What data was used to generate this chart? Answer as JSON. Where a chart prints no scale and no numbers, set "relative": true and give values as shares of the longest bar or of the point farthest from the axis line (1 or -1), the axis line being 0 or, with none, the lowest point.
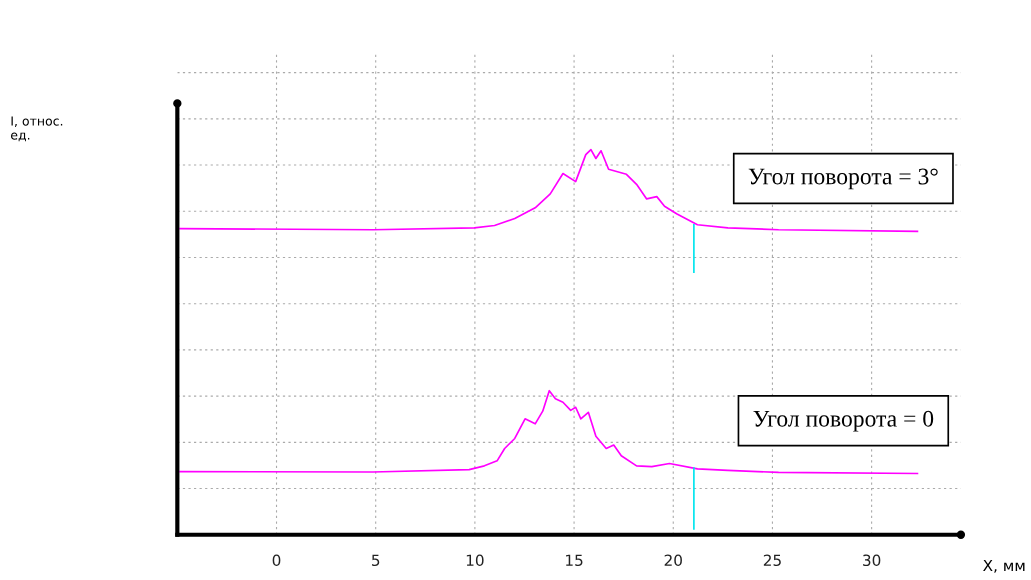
{
  "chart_data": {
    "type": "line",
    "relative": true,
    "xlabel": "X, мм",
    "annotations": [
      "I, относ.\nед."
    ],
    "xlim": [
      -5,
      34.5
    ],
    "xticks": [
      0,
      5,
      10,
      15,
      20,
      25,
      30
    ],
    "grid": true,
    "legend": false,
    "series": [
      {
        "name": "Угол поворота = 3°",
        "color": "#ff00ff",
        "x": [
          -4.86,
          4.86,
          9.97,
          10.99,
          12.01,
          13.04,
          13.8,
          14.44,
          15.08,
          15.59,
          15.85,
          16.1,
          16.36,
          16.74,
          17.64,
          18.15,
          18.66,
          19.17,
          19.56,
          20.19,
          21.22,
          22.75,
          25.31,
          32.31
        ],
        "values": [
          0.795,
          0.792,
          0.797,
          0.803,
          0.821,
          0.849,
          0.885,
          0.938,
          0.917,
          0.987,
          1.0,
          0.977,
          0.997,
          0.949,
          0.936,
          0.91,
          0.872,
          0.878,
          0.853,
          0.833,
          0.805,
          0.797,
          0.792,
          0.788
        ]
      },
      {
        "name": "Угол поворота = 0",
        "color": "#ff00ff",
        "x": [
          -4.86,
          4.86,
          9.71,
          10.48,
          11.12,
          11.5,
          12.01,
          12.53,
          13.04,
          13.42,
          13.75,
          14.06,
          14.44,
          14.83,
          15.08,
          15.34,
          15.72,
          16.1,
          16.62,
          17.0,
          17.38,
          18.15,
          18.92,
          19.81,
          21.22,
          22.75,
          25.31,
          32.31
        ],
        "values": [
          0.164,
          0.163,
          0.169,
          0.179,
          0.192,
          0.224,
          0.25,
          0.301,
          0.288,
          0.321,
          0.374,
          0.353,
          0.344,
          0.323,
          0.331,
          0.301,
          0.318,
          0.256,
          0.224,
          0.233,
          0.205,
          0.179,
          0.177,
          0.185,
          0.171,
          0.167,
          0.162,
          0.159
        ]
      },
      {
        "color": "#00e5ee",
        "x": [
          21.04,
          21.04
        ],
        "values": [
          0.805,
          0.682
        ]
      },
      {
        "color": "#00e5ee",
        "x": [
          21.04,
          21.04
        ],
        "values": [
          0.173,
          0.015
        ]
      }
    ]
  }
}
